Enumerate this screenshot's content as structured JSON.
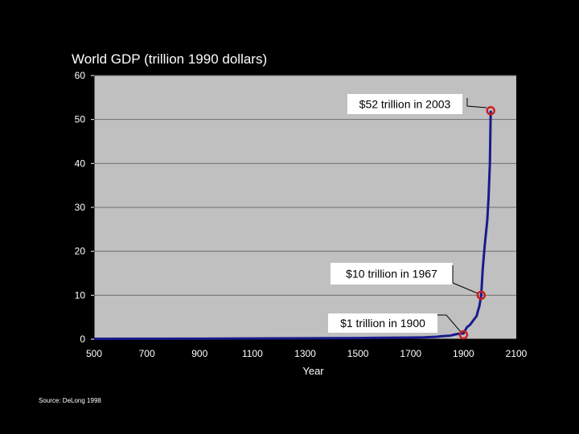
{
  "chart_data": {
    "type": "line",
    "title": "World GDP (trillion 1990 dollars)",
    "xlabel": "Year",
    "ylabel": "",
    "xlim": [
      500,
      2100
    ],
    "ylim": [
      0,
      60
    ],
    "x_ticks": [
      500,
      700,
      900,
      1100,
      1300,
      1500,
      1700,
      1900,
      2100
    ],
    "y_ticks": [
      0,
      10,
      20,
      30,
      40,
      50,
      60
    ],
    "grid": true,
    "legend": "none",
    "plot_background": "#c0c0c0",
    "series": [
      {
        "color": "#1a1a8c",
        "x": [
          500,
          1000,
          1500,
          1600,
          1700,
          1750,
          1800,
          1820,
          1850,
          1870,
          1880,
          1900,
          1913,
          1925,
          1940,
          1950,
          1955,
          1960,
          1967,
          1973,
          1980,
          1990,
          1995,
          2000,
          2003
        ],
        "y": [
          0.1,
          0.12,
          0.25,
          0.33,
          0.37,
          0.42,
          0.55,
          0.69,
          0.8,
          1.1,
          1.2,
          1.3,
          2.7,
          3.3,
          4.5,
          5.3,
          6.5,
          7.5,
          10,
          16,
          21,
          27,
          32,
          40,
          52
        ]
      }
    ],
    "highlights": [
      {
        "x": 1900,
        "y": 1,
        "label": "$1 trillion in 1900"
      },
      {
        "x": 1967,
        "y": 10,
        "label": "$10 trillion in 1967"
      },
      {
        "x": 2003,
        "y": 52,
        "label": "$52 trillion in 2003"
      }
    ],
    "source": "Source: DeLong 1998"
  }
}
